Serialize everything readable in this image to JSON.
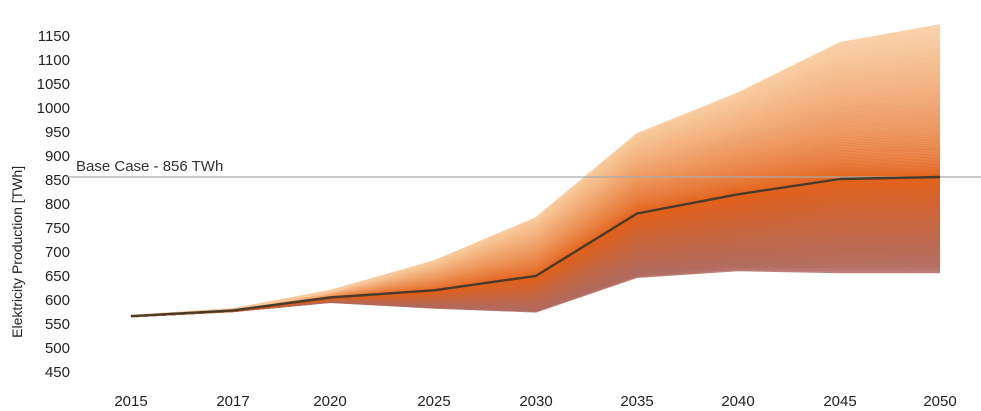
{
  "chart_data": {
    "type": "line",
    "title": "",
    "xlabel": "",
    "ylabel": "Elektricity Production [TWh]",
    "x": [
      "2015",
      "2017",
      "2020",
      "2025",
      "2030",
      "2035",
      "2040",
      "2045",
      "2050"
    ],
    "yticks": [
      450,
      500,
      550,
      600,
      650,
      700,
      750,
      800,
      850,
      900,
      950,
      1000,
      1050,
      1100,
      1150
    ],
    "ylim": [
      410,
      1175
    ],
    "grid": false,
    "legend": "none",
    "reference_line": {
      "value": 856,
      "label": "Base Case - 856 TWh"
    },
    "highlight_series": {
      "values": [
        566,
        578,
        605,
        620,
        650,
        780,
        820,
        852,
        856
      ],
      "color": "#4a3a2a"
    },
    "envelope": {
      "upper": [
        566,
        580,
        618,
        680,
        770,
        945,
        1030,
        1135,
        1172
      ],
      "lower": [
        566,
        577,
        596,
        584,
        576,
        648,
        662,
        658,
        658
      ]
    },
    "series_count": 180,
    "colors": {
      "high": "#f8c99a",
      "mid": "#e2611a",
      "low": "#b06b60",
      "reference": "#aaaaaa"
    }
  }
}
